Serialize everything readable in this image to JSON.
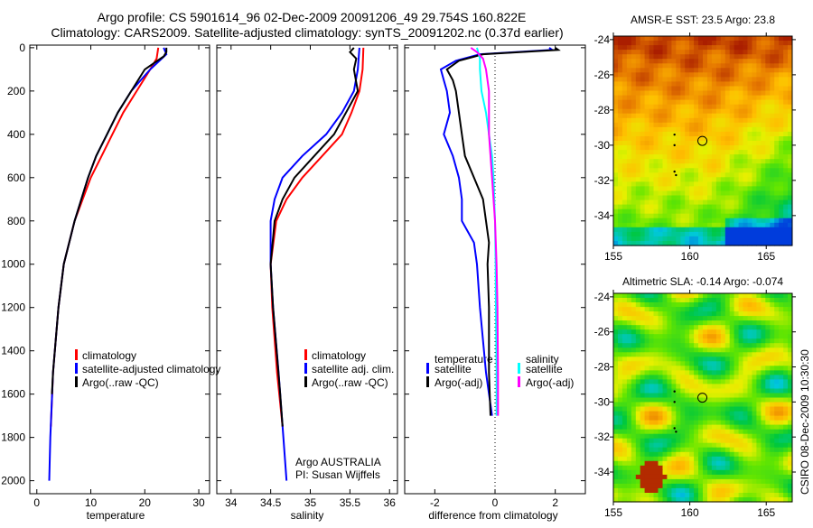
{
  "title_line1": "Argo profile: CS 5901614_96 02-Dec-2009 20091206_49 29.754S 160.822E",
  "title_line2": "Climatology: CARS2009. Satellite-adjusted climatology: synTS_20091202.nc (0.37d earlier)",
  "side_stamp": "CSIRO 08-Dec-2009 10:30:30",
  "colors": {
    "red": "#ff0000",
    "blue": "#0000ff",
    "black": "#000000",
    "cyan": "#00ffff",
    "magenta": "#ff00ff"
  },
  "chart_data": [
    {
      "type": "line",
      "id": "temperature",
      "xlabel": "temperature",
      "ylabel": "",
      "xlim": [
        -1.3,
        32
      ],
      "ylim": [
        2060,
        -12
      ],
      "xticks": [
        0,
        10,
        20,
        30
      ],
      "yticks": [
        0,
        200,
        400,
        600,
        800,
        1000,
        1200,
        1400,
        1600,
        1800,
        2000
      ],
      "legend": [
        "climatology",
        "satellite-adjusted climatology",
        "Argo(..raw -QC)"
      ],
      "legend_position": "bottom-right",
      "series": [
        {
          "name": "climatology",
          "color": "red",
          "depth": [
            0,
            50,
            100,
            200,
            300,
            400,
            500,
            600,
            800,
            1000,
            1200,
            1500,
            1750
          ],
          "values": [
            22.5,
            22.2,
            21,
            18.5,
            16,
            14,
            12,
            10,
            7,
            5,
            4,
            3,
            2.6
          ]
        },
        {
          "name": "satellite-adjusted climatology",
          "color": "blue",
          "depth": [
            0,
            30,
            100,
            200,
            300,
            400,
            500,
            600,
            800,
            1000,
            1200,
            1500,
            1800,
            2000
          ],
          "values": [
            23.5,
            24,
            21,
            17.5,
            15,
            13,
            11,
            9.5,
            7,
            5,
            4,
            3,
            2.5,
            2.3
          ]
        },
        {
          "name": "Argo(..raw -QC)",
          "color": "black",
          "depth": [
            0,
            20,
            40,
            100,
            200,
            300,
            400,
            500,
            600,
            800,
            1000,
            1200,
            1500,
            1600
          ],
          "values": [
            24,
            24,
            23.5,
            20,
            17.5,
            15,
            13,
            11,
            9.5,
            7,
            5,
            4,
            3,
            2.8
          ]
        }
      ]
    },
    {
      "type": "line",
      "id": "salinity",
      "xlabel": "salinity",
      "xlim": [
        33.82,
        36.1
      ],
      "ylim": [
        2060,
        -12
      ],
      "xticks": [
        34,
        34.5,
        35,
        35.5,
        36
      ],
      "legend": [
        "climatology",
        "satellite adj. clim.",
        "Argo(..raw -QC)"
      ],
      "legend_position": "bottom-right",
      "annotations": [
        "Argo AUSTRALIA",
        "PI: Susan Wijffels"
      ],
      "series": [
        {
          "name": "climatology",
          "color": "red",
          "depth": [
            0,
            100,
            200,
            300,
            400,
            500,
            600,
            700,
            800,
            1000,
            1200,
            1500,
            1750
          ],
          "values": [
            35.67,
            35.66,
            35.62,
            35.52,
            35.4,
            35.15,
            34.9,
            34.7,
            34.57,
            34.5,
            34.52,
            34.58,
            34.65
          ]
        },
        {
          "name": "satellite adj. clim.",
          "color": "blue",
          "depth": [
            0,
            100,
            200,
            300,
            400,
            500,
            600,
            700,
            800,
            1000,
            1200,
            1500,
            1800,
            2000
          ],
          "values": [
            35.62,
            35.6,
            35.55,
            35.4,
            35.2,
            34.9,
            34.65,
            34.55,
            34.5,
            34.5,
            34.53,
            34.6,
            34.66,
            34.7
          ]
        },
        {
          "name": "Argo(..raw -QC)",
          "color": "black",
          "depth": [
            0,
            20,
            50,
            100,
            200,
            300,
            400,
            500,
            600,
            700,
            800,
            1000,
            1200,
            1600,
            1750
          ],
          "values": [
            35.55,
            35.5,
            35.58,
            35.55,
            35.6,
            35.45,
            35.3,
            35.05,
            34.8,
            34.65,
            34.55,
            34.5,
            34.53,
            34.62,
            34.65
          ]
        }
      ]
    },
    {
      "type": "line",
      "id": "difference",
      "xlabel": "difference from climatology",
      "xlim": [
        -3,
        3
      ],
      "ylim": [
        2060,
        -12
      ],
      "xticks": [
        -2,
        0,
        2
      ],
      "legend_temperature_title": "temperature",
      "legend_salinity_title": "salinity",
      "legend": [
        "satellite",
        "Argo(-adj)",
        "satellite",
        "Argo(-adj)"
      ],
      "series": [
        {
          "name": "temperature satellite",
          "color": "blue",
          "depth": [
            0,
            10,
            30,
            60,
            100,
            150,
            200,
            300,
            400,
            500,
            600,
            700,
            800,
            900,
            1000,
            1200,
            1500,
            1700
          ],
          "values": [
            1.8,
            1.9,
            -0.5,
            -1.3,
            -1.8,
            -1.7,
            -1.6,
            -1.5,
            -1.7,
            -1.4,
            -1.2,
            -1.1,
            -1.1,
            -0.7,
            -0.6,
            -0.5,
            -0.3,
            -0.1
          ]
        },
        {
          "name": "temperature Argo(-adj)",
          "color": "black",
          "depth": [
            0,
            10,
            30,
            60,
            100,
            150,
            200,
            300,
            400,
            500,
            600,
            700,
            800,
            900,
            1000,
            1200,
            1500,
            1700
          ],
          "values": [
            2.0,
            2.1,
            -0.4,
            -1.2,
            -1.6,
            -1.4,
            -1.3,
            -1.2,
            -1.1,
            -1.0,
            -0.7,
            -0.4,
            -0.3,
            -0.2,
            -0.25,
            -0.2,
            -0.2,
            -0.15
          ]
        },
        {
          "name": "salinity satellite",
          "color": "cyan",
          "depth": [
            0,
            50,
            100,
            200,
            300,
            400,
            500,
            600,
            800,
            1000,
            1200,
            1500,
            1700
          ],
          "values": [
            -0.6,
            -0.5,
            -0.5,
            -0.45,
            -0.3,
            -0.2,
            -0.1,
            -0.05,
            0,
            0.02,
            0.03,
            0.05,
            0.05
          ]
        },
        {
          "name": "salinity Argo(-adj)",
          "color": "magenta",
          "depth": [
            0,
            20,
            50,
            100,
            200,
            300,
            400,
            500,
            600,
            800,
            1000,
            1200,
            1500,
            1700
          ],
          "values": [
            -0.8,
            -0.6,
            -0.4,
            -0.3,
            -0.2,
            -0.2,
            -0.2,
            -0.15,
            -0.1,
            0,
            0.05,
            0.08,
            0.1,
            0.1
          ]
        }
      ]
    },
    {
      "type": "heatmap",
      "id": "sst-map",
      "title": "AMSR-E SST: 23.5 Argo: 23.8",
      "xlim": [
        155,
        166.7
      ],
      "ylim": [
        -23.8,
        -35.7
      ],
      "xticks": [
        155,
        160,
        165
      ],
      "yticks": [
        -24,
        -26,
        -28,
        -30,
        -32,
        -34
      ],
      "argo_position": [
        160.822,
        -29.754
      ]
    },
    {
      "type": "heatmap",
      "id": "sla-map",
      "title": "Altimetric SLA: -0.14 Argo: -0.074",
      "xlim": [
        155,
        166.7
      ],
      "ylim": [
        -23.8,
        -35.7
      ],
      "xticks": [
        155,
        160,
        165
      ],
      "yticks": [
        -24,
        -26,
        -28,
        -30,
        -32,
        -34
      ],
      "argo_position": [
        160.822,
        -29.754
      ]
    }
  ]
}
